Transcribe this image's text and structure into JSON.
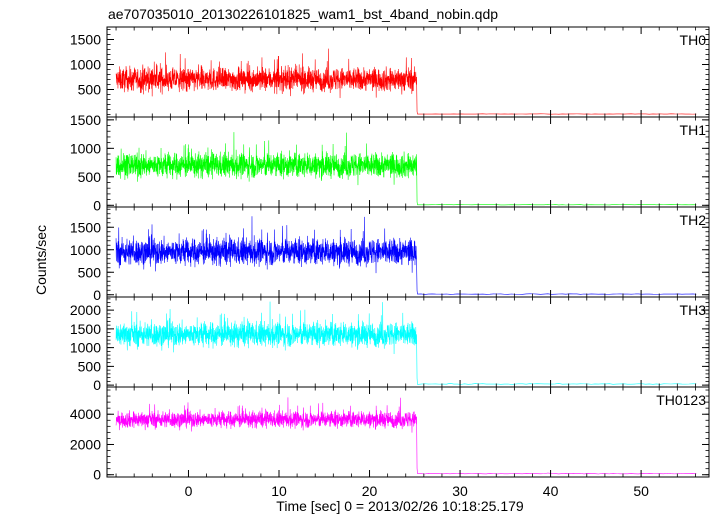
{
  "chart_data": {
    "type": "line",
    "title": "ae707035010_20130226101825_wam1_bst_4band_nobin.qdp",
    "xlabel": "Time [sec] 0 = 2013/02/26 10:18:25.179",
    "ylabel": "Counts/sec",
    "xlim": [
      -9,
      57.5
    ],
    "x_ticks": [
      0,
      10,
      20,
      30,
      40,
      50
    ],
    "grid": false,
    "shared_x": true,
    "burst_window": [
      -8,
      25.2
    ],
    "panels": [
      {
        "name": "TH0",
        "color": "#ff0000",
        "ylim": [
          -50,
          1750
        ],
        "y_ticks": [
          500,
          1000,
          1500
        ],
        "burst_mean": 700,
        "burst_spread": 300,
        "post_burst_level": 10
      },
      {
        "name": "TH1",
        "color": "#00ff00",
        "ylim": [
          -30,
          1550
        ],
        "y_ticks": [
          0,
          500,
          1000,
          1500
        ],
        "burst_mean": 700,
        "burst_spread": 280,
        "post_burst_level": 10
      },
      {
        "name": "TH2",
        "color": "#0000ff",
        "ylim": [
          -50,
          1950
        ],
        "y_ticks": [
          0,
          500,
          1000,
          1500
        ],
        "burst_mean": 950,
        "burst_spread": 380,
        "post_burst_level": 15
      },
      {
        "name": "TH3",
        "color": "#00ffff",
        "ylim": [
          -50,
          2350
        ],
        "y_ticks": [
          0,
          500,
          1000,
          1500,
          2000
        ],
        "burst_mean": 1350,
        "burst_spread": 420,
        "post_burst_level": 30
      },
      {
        "name": "TH0123",
        "color": "#ff00ff",
        "ylim": [
          -150,
          5800
        ],
        "y_ticks": [
          0,
          2000,
          4000
        ],
        "burst_mean": 3650,
        "burst_spread": 700,
        "post_burst_level": 70
      }
    ]
  }
}
